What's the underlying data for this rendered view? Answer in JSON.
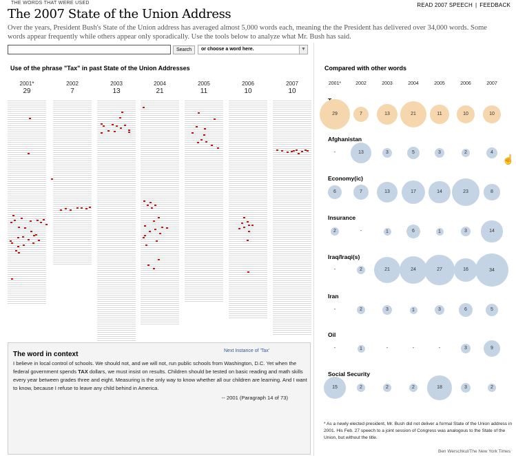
{
  "header": {
    "kicker": "THE WORDS THAT WERE USED",
    "link_read": "READ 2007 SPEECH",
    "link_sep": "|",
    "link_feedback": "FEEDBACK",
    "title": "The 2007 State of the Union Address",
    "intro": "Over the years, President Bush's State of the Union address has averaged almost 5,000 words each, meaning the the President has delivered over 34,000 words. Some words appear frequently while others appear only sporadically. Use the tools below to analyze what Mr. Bush has said."
  },
  "search": {
    "value": "",
    "placeholder": "",
    "button_label": "Search",
    "select_value": "or choose a word here."
  },
  "usage": {
    "title": "Use of the phrase \"Tax\" in past State of the Union Addresses",
    "years": [
      {
        "year": "2001*",
        "count": "29",
        "paragraphs": 73
      },
      {
        "year": "2002",
        "count": "7",
        "paragraphs": 59
      },
      {
        "year": "2003",
        "count": "13",
        "paragraphs": 87
      },
      {
        "year": "2004",
        "count": "21",
        "paragraphs": 80
      },
      {
        "year": "2005",
        "count": "11",
        "paragraphs": 72
      },
      {
        "year": "2006",
        "count": "10",
        "paragraphs": 78
      },
      {
        "year": "2007",
        "count": "10",
        "paragraphs": 84
      }
    ]
  },
  "context": {
    "title": "The word in context",
    "next_label": "Next Instance of 'Tax'",
    "text_before": "I believe in local control of schools. We should not, and we will not, run public schools from Washington, D.C. Yet when the federal government spends ",
    "keyword": "TAX",
    "text_after": " dollars, we must insist on results. Children should be tested on basic reading and math skills every year between grades three and eight. Measuring is the only way to know whether all our children are learning. And I want to know, because I refuse to leave any child behind in America.",
    "citation": "-- 2001 (Paragraph 14 of 73)"
  },
  "compare": {
    "title": "Compared with other words",
    "years": [
      "2001*",
      "2002",
      "2003",
      "2004",
      "2005",
      "2006",
      "2007"
    ],
    "rows": [
      {
        "word": "Tax",
        "color": "#f5d6ad",
        "values": [
          29,
          7,
          13,
          21,
          11,
          10,
          10
        ]
      },
      {
        "word": "Afghanistan",
        "color": "#c5d4e4",
        "values": [
          null,
          13,
          3,
          5,
          3,
          2,
          4
        ]
      },
      {
        "word": "Economy(ic)",
        "color": "#c5d4e4",
        "values": [
          6,
          7,
          13,
          17,
          14,
          23,
          8
        ]
      },
      {
        "word": "Insurance",
        "color": "#c5d4e4",
        "values": [
          2,
          null,
          1,
          6,
          1,
          3,
          14
        ]
      },
      {
        "word": "Iraq/Iraqi(s)",
        "color": "#c5d4e4",
        "values": [
          null,
          2,
          21,
          24,
          27,
          16,
          34
        ]
      },
      {
        "word": "Iran",
        "color": "#c5d4e4",
        "values": [
          null,
          2,
          3,
          1,
          3,
          6,
          5
        ]
      },
      {
        "word": "Oil",
        "color": "#c5d4e4",
        "values": [
          null,
          1,
          null,
          null,
          null,
          3,
          9
        ]
      },
      {
        "word": "Social Security",
        "color": "#c5d4e4",
        "values": [
          15,
          2,
          2,
          2,
          18,
          3,
          2
        ]
      }
    ],
    "missing_label": "-"
  },
  "footnote": "* As a newly elected president, Mr. Bush did not deliver a formal State of the Union address in 2001. His Feb. 27 speech to a joint session of Congress was analogous to the State of the Union, but without the title.",
  "credit": "Ben Werschkul/The New York Times"
}
